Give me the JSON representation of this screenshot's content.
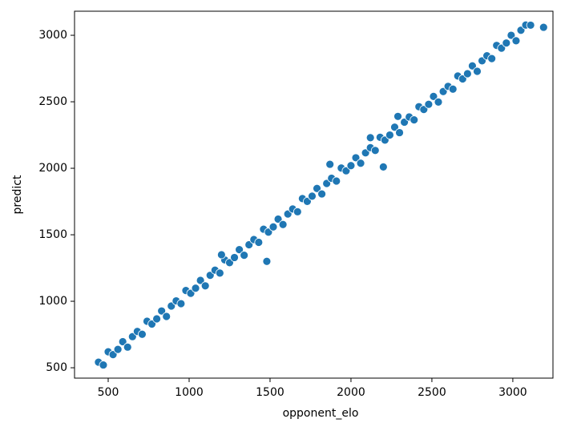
{
  "chart_data": {
    "type": "scatter",
    "x_label": "opponent_elo",
    "y_label": "predict",
    "color": "#1f77b4",
    "x": [
      440,
      470,
      500,
      530,
      560,
      590,
      620,
      650,
      680,
      710,
      740,
      770,
      800,
      830,
      860,
      890,
      920,
      950,
      980,
      1010,
      1040,
      1070,
      1100,
      1130,
      1160,
      1190,
      1220,
      1250,
      1280,
      1310,
      1340,
      1370,
      1400,
      1430,
      1460,
      1490,
      1520,
      1550,
      1580,
      1610,
      1640,
      1670,
      1700,
      1730,
      1760,
      1790,
      1820,
      1850,
      1880,
      1910,
      1940,
      1970,
      2000,
      2030,
      2060,
      2090,
      2120,
      2150,
      2180,
      2210,
      2240,
      2270,
      2300,
      2330,
      2360,
      2390,
      2420,
      2450,
      2480,
      2510,
      2540,
      2570,
      2600,
      2630,
      2660,
      2690,
      2720,
      2750,
      2780,
      2810,
      2840,
      2870,
      2900,
      2930,
      2960,
      2990,
      3020,
      3050,
      3080,
      3110,
      2120,
      2290,
      2200,
      1480,
      1200,
      1870,
      3190
    ],
    "values": [
      542,
      521,
      620,
      599,
      638,
      696,
      655,
      734,
      773,
      752,
      850,
      829,
      868,
      927,
      886,
      964,
      1003,
      982,
      1081,
      1060,
      1098,
      1157,
      1116,
      1195,
      1234,
      1212,
      1311,
      1290,
      1329,
      1388,
      1346,
      1425,
      1464,
      1443,
      1542,
      1520,
      1559,
      1618,
      1577,
      1656,
      1694,
      1673,
      1772,
      1751,
      1790,
      1848,
      1807,
      1886,
      1925,
      1904,
      2002,
      1981,
      2020,
      2079,
      2038,
      2116,
      2155,
      2134,
      2233,
      2212,
      2250,
      2309,
      2268,
      2347,
      2386,
      2364,
      2463,
      2442,
      2481,
      2540,
      2498,
      2577,
      2616,
      2595,
      2694,
      2672,
      2711,
      2770,
      2729,
      2808,
      2846,
      2825,
      2924,
      2903,
      2942,
      3000,
      2959,
      3038,
      3077,
      3076,
      2230,
      2390,
      2010,
      1300,
      1350,
      2030,
      3060
    ],
    "xlim": [
      292,
      3248
    ],
    "xticks": [
      500,
      1000,
      1500,
      2000,
      2500,
      3000
    ],
    "ylim": [
      422,
      3181
    ],
    "yticks": [
      500,
      1000,
      1500,
      2000,
      2500,
      3000
    ]
  }
}
